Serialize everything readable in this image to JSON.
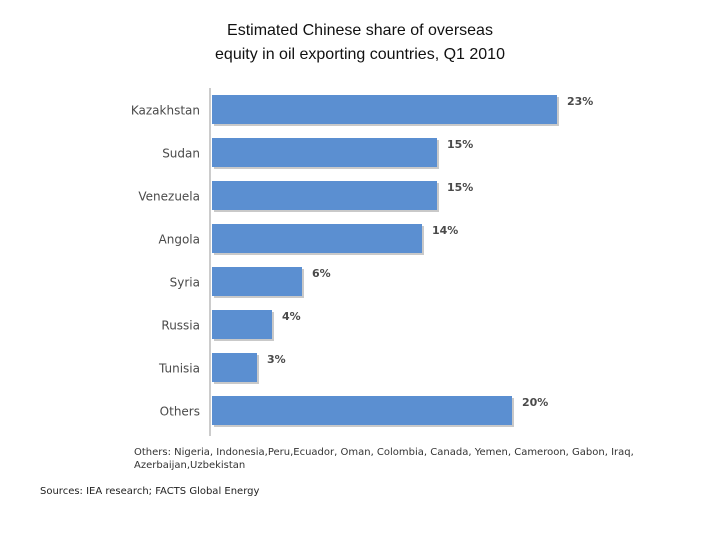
{
  "chart_data": {
    "type": "bar",
    "orientation": "horizontal",
    "title": "Estimated Chinese share of overseas equity in oil exporting countries, Q1 2010",
    "title_lines": [
      "Estimated Chinese share of overseas",
      "equity in oil exporting countries, Q1 2010"
    ],
    "categories": [
      "Kazakhstan",
      "Sudan",
      "Venezuela",
      "Angola",
      "Syria",
      "Russia",
      "Tunisia",
      "Others"
    ],
    "values": [
      23,
      15,
      15,
      14,
      6,
      4,
      3,
      20
    ],
    "data_labels": [
      "23%",
      "15%",
      "15%",
      "14%",
      "6%",
      "4%",
      "3%",
      "20%"
    ],
    "unit": "%",
    "xlim": [
      0,
      23
    ],
    "xlabel": "",
    "ylabel": "",
    "grid": false,
    "legend": "none",
    "bar_color": "#5B8FD1",
    "label_color": "#4a4a4a",
    "axis_color": "#9a9a9a"
  },
  "notes": {
    "others": "Others: Nigeria, Indonesia,Peru,Ecuador, Oman, Colombia, Canada, Yemen, Cameroon, Gabon, Iraq, Azerbaijan,Uzbekistan",
    "sources": "Sources: IEA research; FACTS Global Energy"
  }
}
